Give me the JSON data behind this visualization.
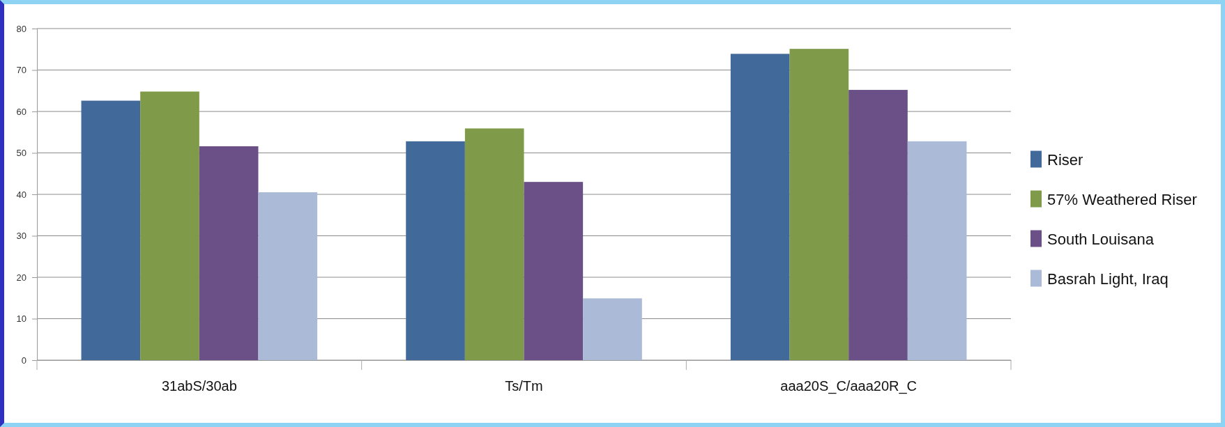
{
  "chart_data": {
    "type": "bar",
    "categories": [
      "31abS/30ab",
      "Ts/Tm",
      "aaa20S_C/aaa20R_C"
    ],
    "series": [
      {
        "name": "Riser",
        "color": "#41699a",
        "values": [
          62.6,
          52.8,
          73.9
        ]
      },
      {
        "name": "57% Weathered Riser",
        "color": "#7f9a48",
        "values": [
          64.8,
          55.9,
          75.1
        ]
      },
      {
        "name": "South Louisana",
        "color": "#6a5086",
        "values": [
          51.6,
          43.0,
          65.2
        ]
      },
      {
        "name": "Basrah Light, Iraq",
        "color": "#aabad7",
        "values": [
          40.5,
          14.9,
          52.8
        ]
      }
    ],
    "ylim": [
      0,
      80
    ],
    "yticks": [
      0,
      10,
      20,
      30,
      40,
      50,
      60,
      70,
      80
    ],
    "grid": "y",
    "legend": "right"
  }
}
